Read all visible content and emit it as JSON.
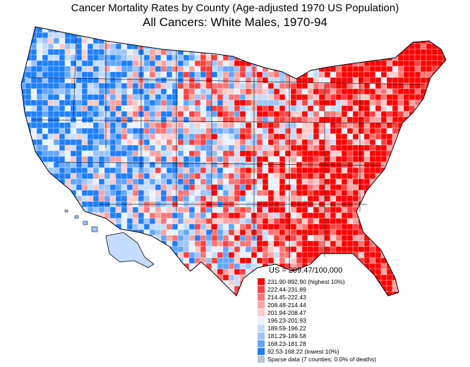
{
  "title": "Cancer Mortality Rates by County (Age-adjusted 1970 US Population)",
  "subtitle": "All Cancers:  White Males, 1970-94",
  "legend": {
    "heading": "US = 209.47/100,000",
    "classes": [
      {
        "label": "231.90-892.90 (highest 10%)",
        "color": "#ff0000"
      },
      {
        "label": "222.44-231.89",
        "color": "#ff4040"
      },
      {
        "label": "214.45-222.43",
        "color": "#ff7575"
      },
      {
        "label": "208.48-214.44",
        "color": "#ffa3a3"
      },
      {
        "label": "201.94-208.47",
        "color": "#ffcccc"
      },
      {
        "label": "196.23-201.93",
        "color": "#eaf2ff"
      },
      {
        "label": "189.59-196.22",
        "color": "#c4dcff"
      },
      {
        "label": "181.29-189.58",
        "color": "#9cc4ff"
      },
      {
        "label": "168.23-181.28",
        "color": "#62a6ff"
      },
      {
        "label": " 92.53-168.22 (lowest 10%)",
        "color": "#1e7fff"
      },
      {
        "label": "Sparse data (7 counties; 0.0% of deaths)",
        "color": "#b4c8d4"
      }
    ]
  }
}
